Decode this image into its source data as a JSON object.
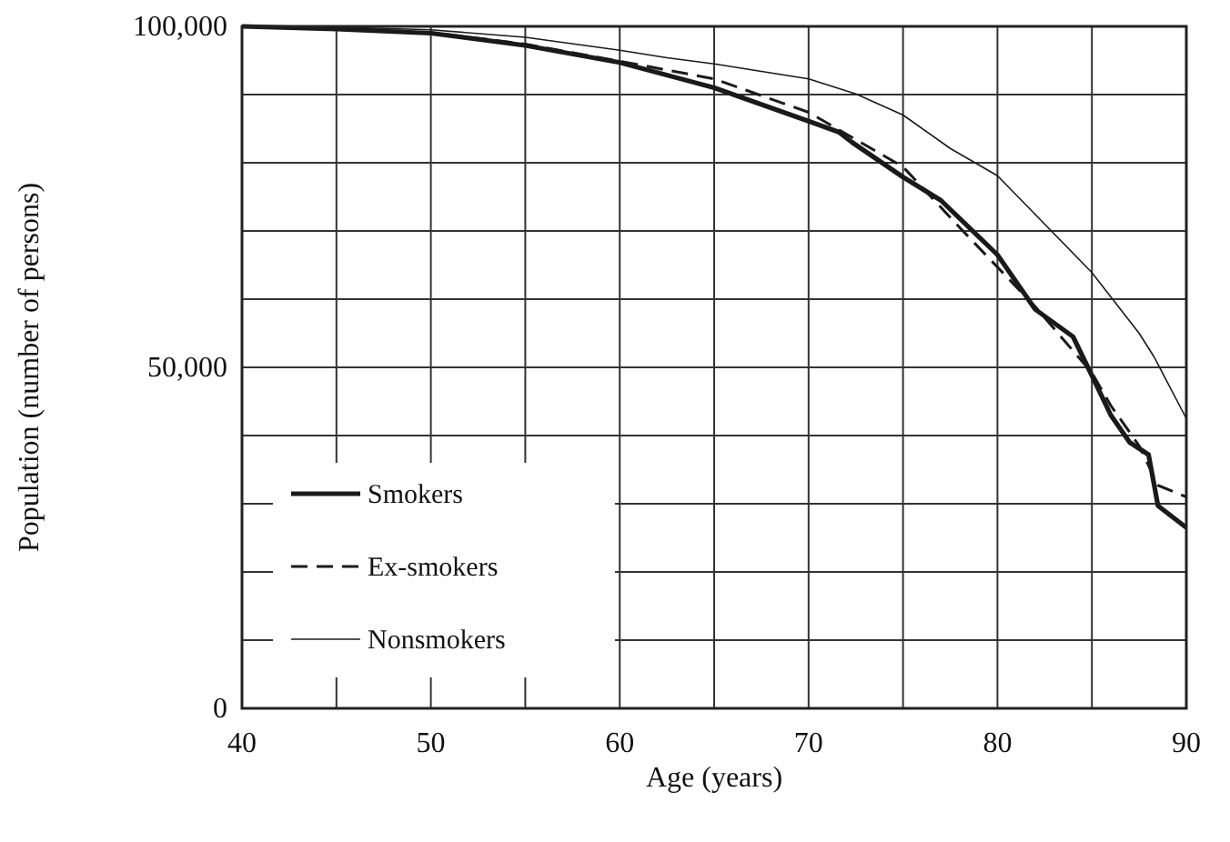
{
  "chart_data": {
    "type": "line",
    "xlabel": "Age (years)",
    "ylabel": "Population (number of persons)",
    "xlim": [
      40,
      90
    ],
    "ylim": [
      0,
      100000
    ],
    "xticks": [
      40,
      {
        "value": 45,
        "label": null
      },
      50,
      {
        "value": 55,
        "label": null
      },
      60,
      {
        "value": 65,
        "label": null
      },
      70,
      {
        "value": 75,
        "label": null
      },
      80,
      {
        "value": 85,
        "label": null
      },
      90
    ],
    "yticks": [
      {
        "value": 0,
        "label": "0"
      },
      {
        "value": 10000,
        "label": null
      },
      {
        "value": 20000,
        "label": null
      },
      {
        "value": 30000,
        "label": null
      },
      {
        "value": 40000,
        "label": null
      },
      {
        "value": 50000,
        "label": "50,000"
      },
      {
        "value": 60000,
        "label": null
      },
      {
        "value": 70000,
        "label": null
      },
      {
        "value": 80000,
        "label": null
      },
      {
        "value": 90000,
        "label": null
      },
      {
        "value": 100000,
        "label": "100,000"
      }
    ],
    "grid": true,
    "legend": "bottom left",
    "series": [
      {
        "name": "Smokers",
        "color": "#1a1a1a",
        "line_style": "solid",
        "x": [
          40,
          45,
          50,
          55,
          60,
          65,
          70,
          71.6,
          72.3,
          75,
          77,
          80,
          82,
          84,
          85,
          86,
          87,
          88,
          88.5,
          90
        ],
        "values": [
          100000,
          99600,
          99000,
          97200,
          94700,
          91000,
          86100,
          84500,
          83000,
          77900,
          74500,
          66500,
          58500,
          54500,
          48800,
          43000,
          39000,
          37200,
          29700,
          26500
        ]
      },
      {
        "name": "Ex-smokers",
        "color": "#1a1a1a",
        "line_style": "dashed",
        "x": [
          40,
          45,
          50,
          55,
          60,
          65,
          70,
          75,
          78,
          80,
          82,
          85,
          86,
          87.5,
          88.5,
          90
        ],
        "values": [
          100000,
          99700,
          99100,
          97400,
          94900,
          92300,
          87400,
          79400,
          70500,
          64700,
          58900,
          49200,
          44400,
          38500,
          32700,
          31000
        ]
      },
      {
        "name": "Nonsmokers",
        "color": "#1a1a1a",
        "line_style": "solid",
        "x": [
          40,
          45,
          50,
          55,
          60,
          62.5,
          65,
          70,
          72.5,
          75,
          77.5,
          80,
          82.5,
          85,
          87.5,
          88.3,
          90
        ],
        "values": [
          100000,
          99900,
          99500,
          98400,
          96500,
          95400,
          94500,
          92300,
          90100,
          87000,
          82100,
          78100,
          71000,
          63900,
          55000,
          51500,
          42500
        ]
      }
    ]
  }
}
